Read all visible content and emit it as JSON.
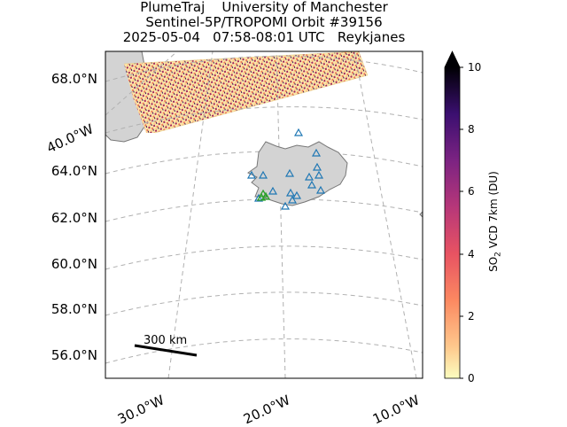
{
  "title": {
    "line1": "PlumeTraj    University of Manchester",
    "line2": "Sentinel-5P/TROPOMI Orbit #39156",
    "line3": "2025-05-04   07:58-08:01 UTC   Reykjanes"
  },
  "lat_labels": [
    "68.0°N",
    "64.0°N",
    "62.0°N",
    "60.0°N",
    "58.0°N",
    "56.0°N"
  ],
  "lon_labels_bottom": [
    "30.0°W",
    "20.0°W",
    "10.0°W"
  ],
  "lon_label_left": "40.0°W",
  "scale_bar": {
    "label": "300 km"
  },
  "colorbar": {
    "label_prefix": "SO",
    "label_sub": "2",
    "label_suffix": " VCD 7km (DU)",
    "ticks": [
      "0",
      "2",
      "4",
      "6",
      "8",
      "10"
    ],
    "range": [
      0,
      10
    ],
    "colormap": "magma_r",
    "extend": "max"
  },
  "map": {
    "region": "Iceland",
    "land_color": "#d3d3d3",
    "coast_color": "#777777",
    "grid_color": "#b0b0b0",
    "station_marker_color": "#1f77b4",
    "source_marker_color": "#2ca02c"
  }
}
